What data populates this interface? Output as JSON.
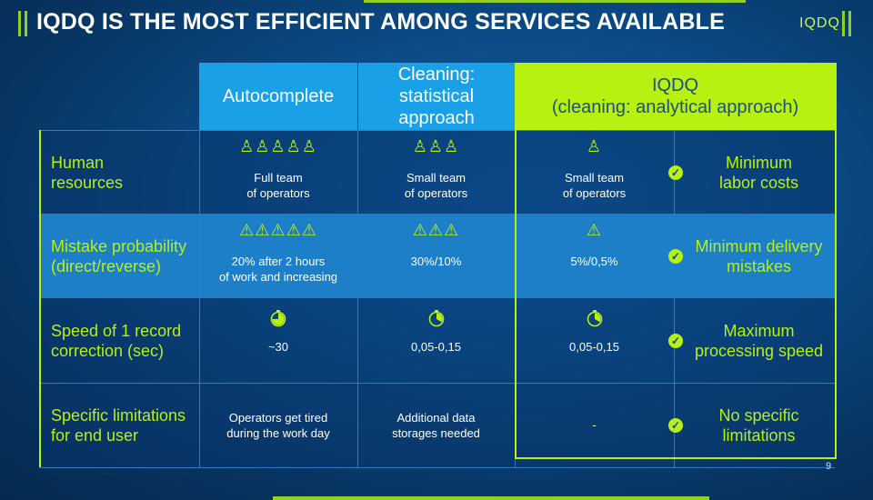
{
  "title": "IQDQ IS THE MOST EFFICIENT AMONG SERVICES AVAILABLE",
  "logo": "IQDQ",
  "slide_number": "9",
  "headers": {
    "autocomplete": "Autocomplete",
    "cleaning_statistical": "Cleaning: statistical approach",
    "iqdq": "IQDQ\n(cleaning: analytical approach)"
  },
  "rows": [
    {
      "label": "Human resources",
      "autocomplete": {
        "icons": "♙♙♙♙♙",
        "text": "Full team\nof operators"
      },
      "cleaning": {
        "icons": "♙♙♙",
        "text": "Small team\nof operators"
      },
      "iqdq": {
        "icons": "♙",
        "text": "Small team\nof operators"
      },
      "benefit": "Minimum\nlabor costs"
    },
    {
      "label": "Mistake probability (direct/reverse)",
      "autocomplete": {
        "icons": "⚠⚠⚠⚠⚠",
        "text": "20% after 2 hours\nof work and increasing"
      },
      "cleaning": {
        "icons": "⚠⚠⚠",
        "text": "30%/10%"
      },
      "iqdq": {
        "icons": "⚠",
        "text": "5%/0,5%"
      },
      "benefit": "Minimum delivery\nmistakes"
    },
    {
      "label": "Speed of 1 record correction (sec)",
      "autocomplete": {
        "text": "~30"
      },
      "cleaning": {
        "text": "0,05-0,15"
      },
      "iqdq": {
        "text": "0,05-0,15"
      },
      "benefit": "Maximum\nprocessing speed"
    },
    {
      "label": "Specific limitations for end user",
      "autocomplete": {
        "text": "Operators get tired\nduring the work day"
      },
      "cleaning": {
        "text": "Additional data\nstorages needed"
      },
      "iqdq": {
        "text": "-"
      },
      "benefit": "No specific\nlimitations"
    }
  ],
  "icons": {
    "person": "person-icon",
    "warning": "warning-icon",
    "stopwatch": "stopwatch-icon",
    "check": "check-icon"
  },
  "colors": {
    "accent": "#b8f011",
    "header_blue": "#1aa0e6",
    "highlight_row": "#1c7fc7"
  }
}
